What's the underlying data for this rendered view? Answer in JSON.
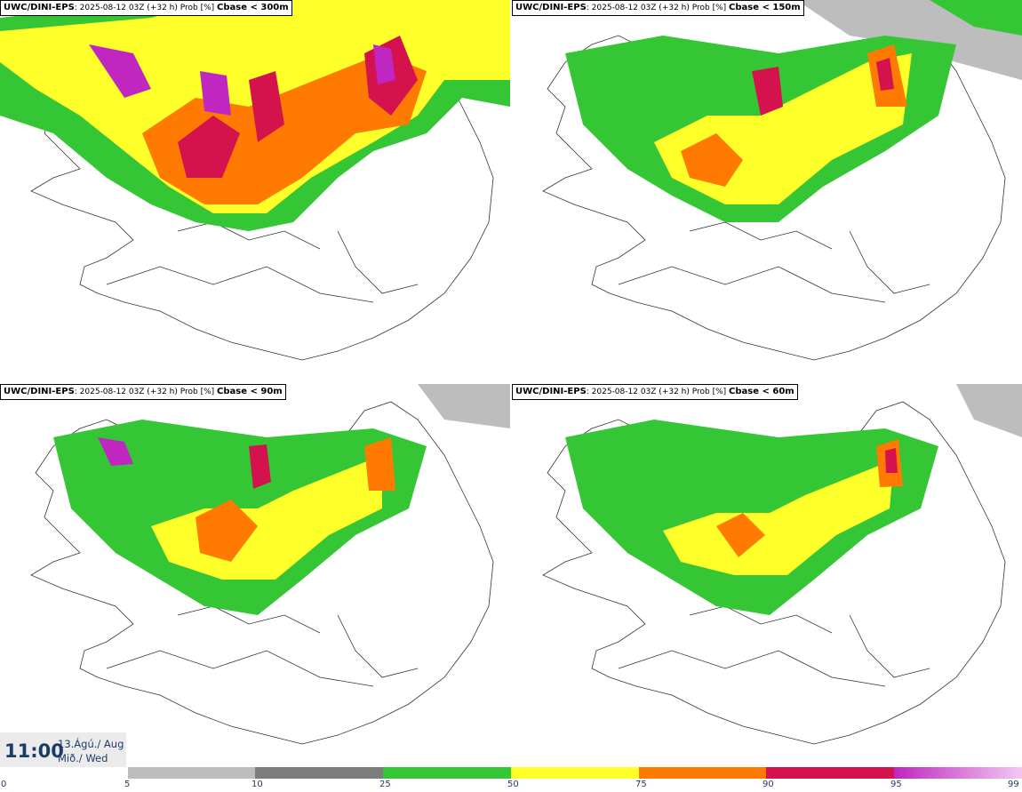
{
  "panels": [
    {
      "model": "UWC/DINI-EPS",
      "info": ": 2025-08-12 03Z (+32 h) Prob [%]",
      "threshold": "Cbase < 300m"
    },
    {
      "model": "UWC/DINI-EPS",
      "info": ": 2025-08-12 03Z (+32 h) Prob [%]",
      "threshold": "Cbase < 150m"
    },
    {
      "model": "UWC/DINI-EPS",
      "info": ": 2025-08-12 03Z (+32 h) Prob [%]",
      "threshold": "Cbase < 90m"
    },
    {
      "model": "UWC/DINI-EPS",
      "info": ": 2025-08-12 03Z (+32 h) Prob [%]",
      "threshold": "Cbase < 60m"
    }
  ],
  "valid_time": {
    "hour": "11:00",
    "date_line1": "13.Ágú./ Aug",
    "date_line2": "Mið./ Wed"
  },
  "legend": {
    "ticks": [
      "0",
      "5",
      "10",
      "25",
      "50",
      "75",
      "90",
      "95",
      "99"
    ],
    "colors": [
      "#ffffff",
      "#bdbdbd",
      "#7d7d7d",
      "#34c634",
      "#ffff2a",
      "#ff7a00",
      "#d4124e",
      "#c026c0",
      "#f3c8f3"
    ]
  }
}
